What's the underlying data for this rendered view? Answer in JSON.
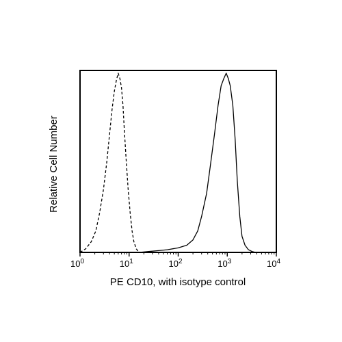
{
  "chart_data": {
    "type": "line",
    "title": "",
    "xlabel": "PE CD10, with isotype control",
    "ylabel": "Relative Cell Number",
    "x_scale": "log",
    "xlim": [
      1,
      10000
    ],
    "ylim": [
      0,
      1
    ],
    "grid": false,
    "legend": "none",
    "x_ticks": [
      {
        "value": 1,
        "base": "10",
        "exp": "0"
      },
      {
        "value": 10,
        "base": "10",
        "exp": "1"
      },
      {
        "value": 100,
        "base": "10",
        "exp": "2"
      },
      {
        "value": 1000,
        "base": "10",
        "exp": "3"
      },
      {
        "value": 10000,
        "base": "10",
        "exp": "4"
      }
    ],
    "series": [
      {
        "style": "dashed",
        "color": "#000000",
        "x": [
          1.0,
          1.3,
          1.7,
          2.1,
          2.5,
          3.0,
          3.5,
          4.0,
          4.5,
          5.0,
          5.5,
          6.0,
          6.5,
          7.0,
          7.5,
          8.0,
          8.7,
          9.5,
          10.5,
          11.5,
          12.5,
          14.0,
          16.0
        ],
        "y": [
          0.0,
          0.02,
          0.06,
          0.12,
          0.22,
          0.35,
          0.5,
          0.66,
          0.8,
          0.9,
          0.96,
          1.0,
          0.97,
          0.92,
          0.82,
          0.68,
          0.52,
          0.36,
          0.22,
          0.12,
          0.06,
          0.02,
          0.0
        ]
      },
      {
        "style": "solid",
        "color": "#000000",
        "x": [
          16,
          25,
          40,
          60,
          100,
          150,
          200,
          250,
          300,
          380,
          450,
          550,
          650,
          750,
          850,
          950,
          1050,
          1150,
          1300,
          1450,
          1600,
          1800,
          2000,
          2300,
          2700,
          3200,
          3800
        ],
        "y": [
          0.0,
          0.005,
          0.01,
          0.015,
          0.025,
          0.04,
          0.07,
          0.12,
          0.2,
          0.33,
          0.48,
          0.66,
          0.82,
          0.93,
          0.97,
          1.0,
          0.97,
          0.93,
          0.82,
          0.63,
          0.4,
          0.2,
          0.09,
          0.04,
          0.015,
          0.005,
          0.0
        ]
      }
    ]
  }
}
